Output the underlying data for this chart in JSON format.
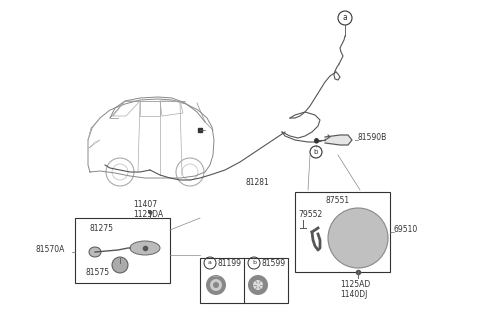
{
  "bg_color": "#ffffff",
  "fig_width": 4.8,
  "fig_height": 3.28,
  "dpi": 100,
  "line_color": "#666666",
  "text_color": "#333333",
  "font_size": 5.5,
  "parts": {
    "a_label": "a",
    "b_label": "b",
    "81590B": "81590B",
    "81281": "81281",
    "87551": "87551",
    "79552": "79552",
    "69510": "69510",
    "1125AD": "1125AD",
    "1140DJ": "1140DJ",
    "11407": "11407",
    "1125DA": "1125DA",
    "81275": "81275",
    "81570A": "81570A",
    "81575": "81575",
    "81199": "81199",
    "81599": "81599"
  }
}
